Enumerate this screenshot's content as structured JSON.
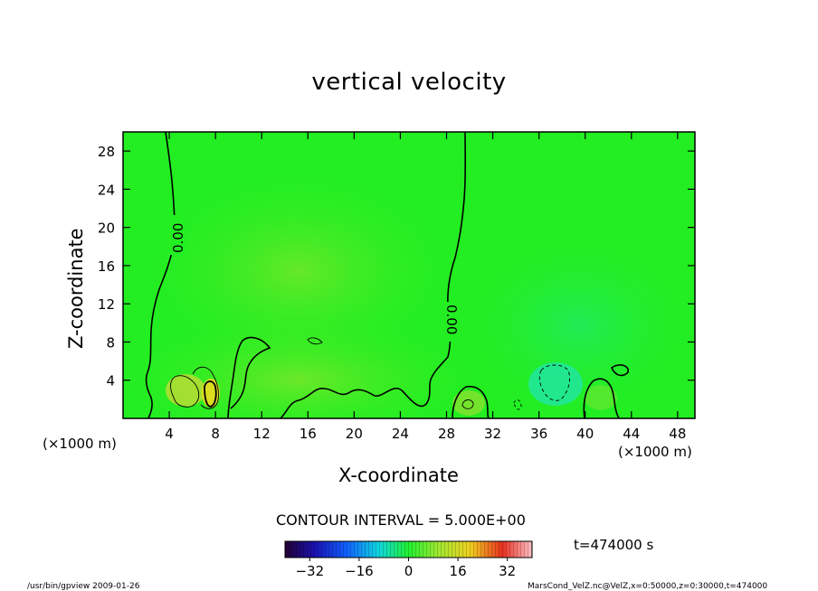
{
  "chart_data": {
    "type": "heatmap",
    "title": "vertical velocity",
    "xlabel": "X-coordinate",
    "ylabel": "Z-coordinate",
    "x_unit_label": "(×1000 m)",
    "xlim": [
      0,
      49.5
    ],
    "ylim": [
      0,
      30
    ],
    "x_ticks": [
      "4",
      "8",
      "12",
      "16",
      "20",
      "24",
      "28",
      "32",
      "36",
      "40",
      "44",
      "48"
    ],
    "y_ticks": [
      "4",
      "8",
      "12",
      "16",
      "20",
      "24",
      "28"
    ],
    "contour_labels": [
      "0.00",
      "0.00"
    ],
    "contour_interval_text": "CONTOUR INTERVAL = 5.000E+00",
    "colorbar": {
      "range": [
        -40,
        40
      ],
      "ticks": [
        "-32",
        "-16",
        "0",
        "16",
        "32"
      ]
    },
    "time_text": "t=474000 s",
    "field_description_colors": {
      "background": "#22ee22",
      "positive_tint": "#b8e430",
      "negative_tint": "#22e88a"
    }
  },
  "footer": {
    "left": "/usr/bin/gpview  2009-01-26",
    "right": "MarsCond_VelZ.nc@VelZ,x=0:50000,z=0:30000,t=474000"
  }
}
